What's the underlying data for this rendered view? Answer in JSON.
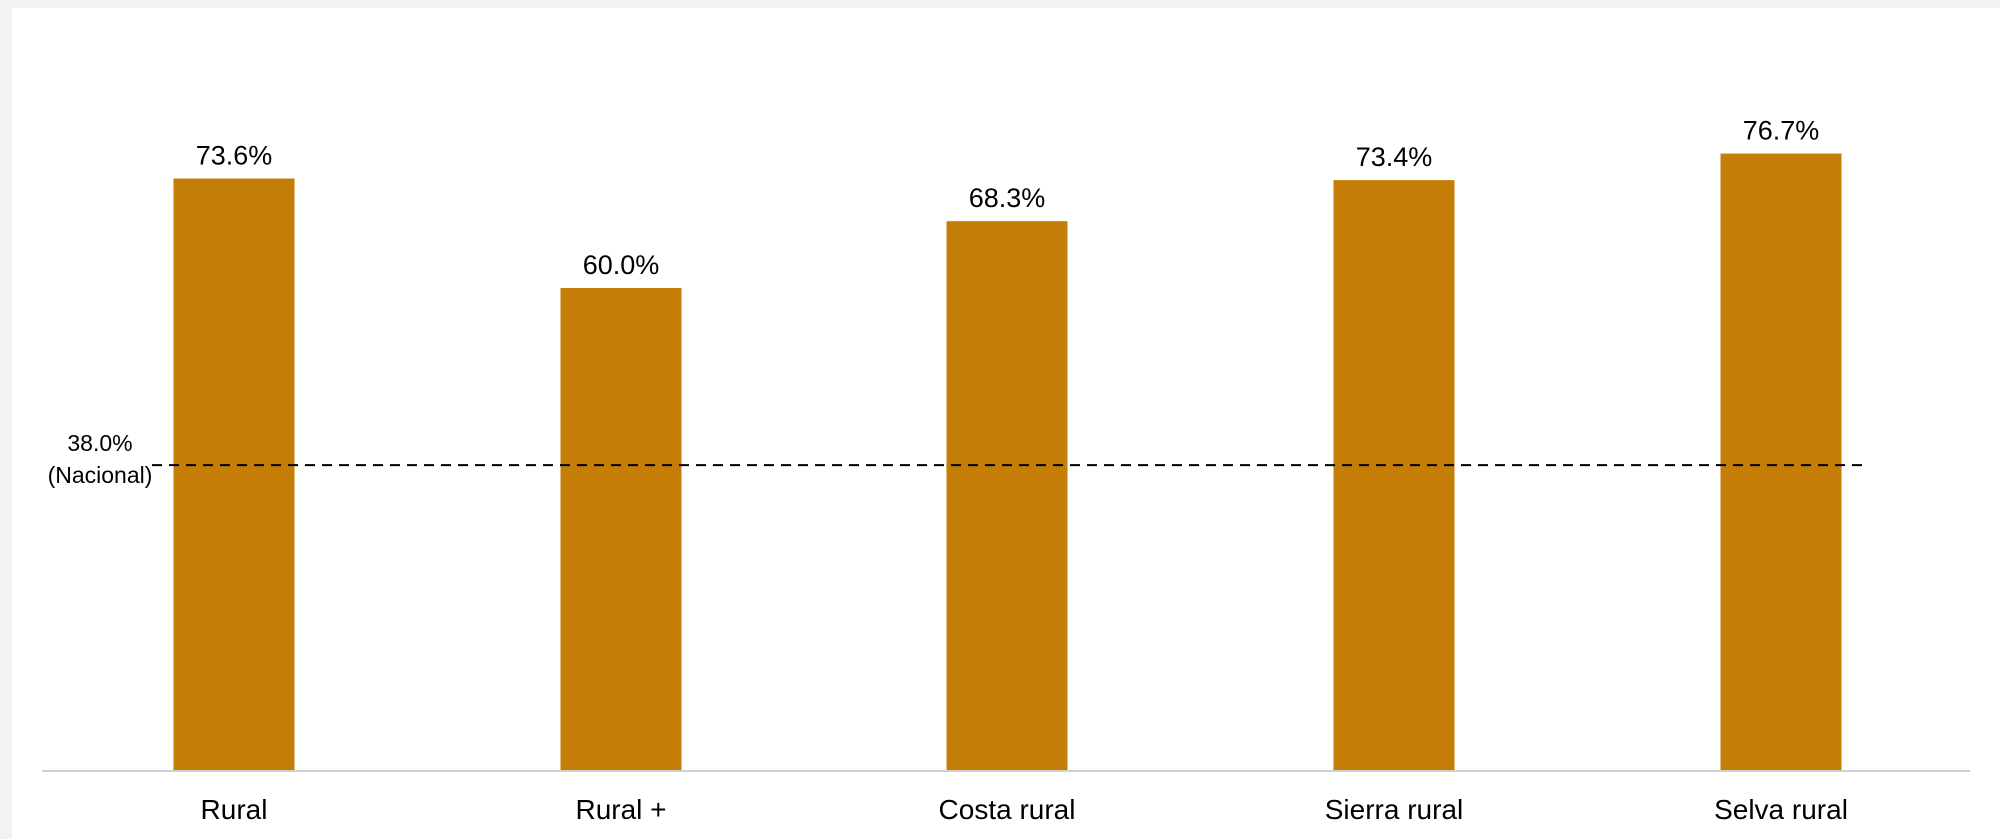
{
  "chart_data": {
    "type": "bar",
    "categories": [
      "Rural",
      "Rural +",
      "Costa rural",
      "Sierra rural",
      "Selva rural"
    ],
    "values": [
      73.6,
      60.0,
      68.3,
      73.4,
      76.7
    ],
    "value_labels": [
      "73.6%",
      "60.0%",
      "68.3%",
      "73.4%",
      "76.7%"
    ],
    "title": "",
    "xlabel": "",
    "ylabel": "",
    "ylim": [
      0,
      100
    ],
    "grid": false,
    "bar_color": "#C47D06",
    "reference_line": {
      "value": 38.0,
      "label_value": "38.0%",
      "label_name": "(Nacional)",
      "style": "dashed",
      "color": "#000000"
    }
  }
}
